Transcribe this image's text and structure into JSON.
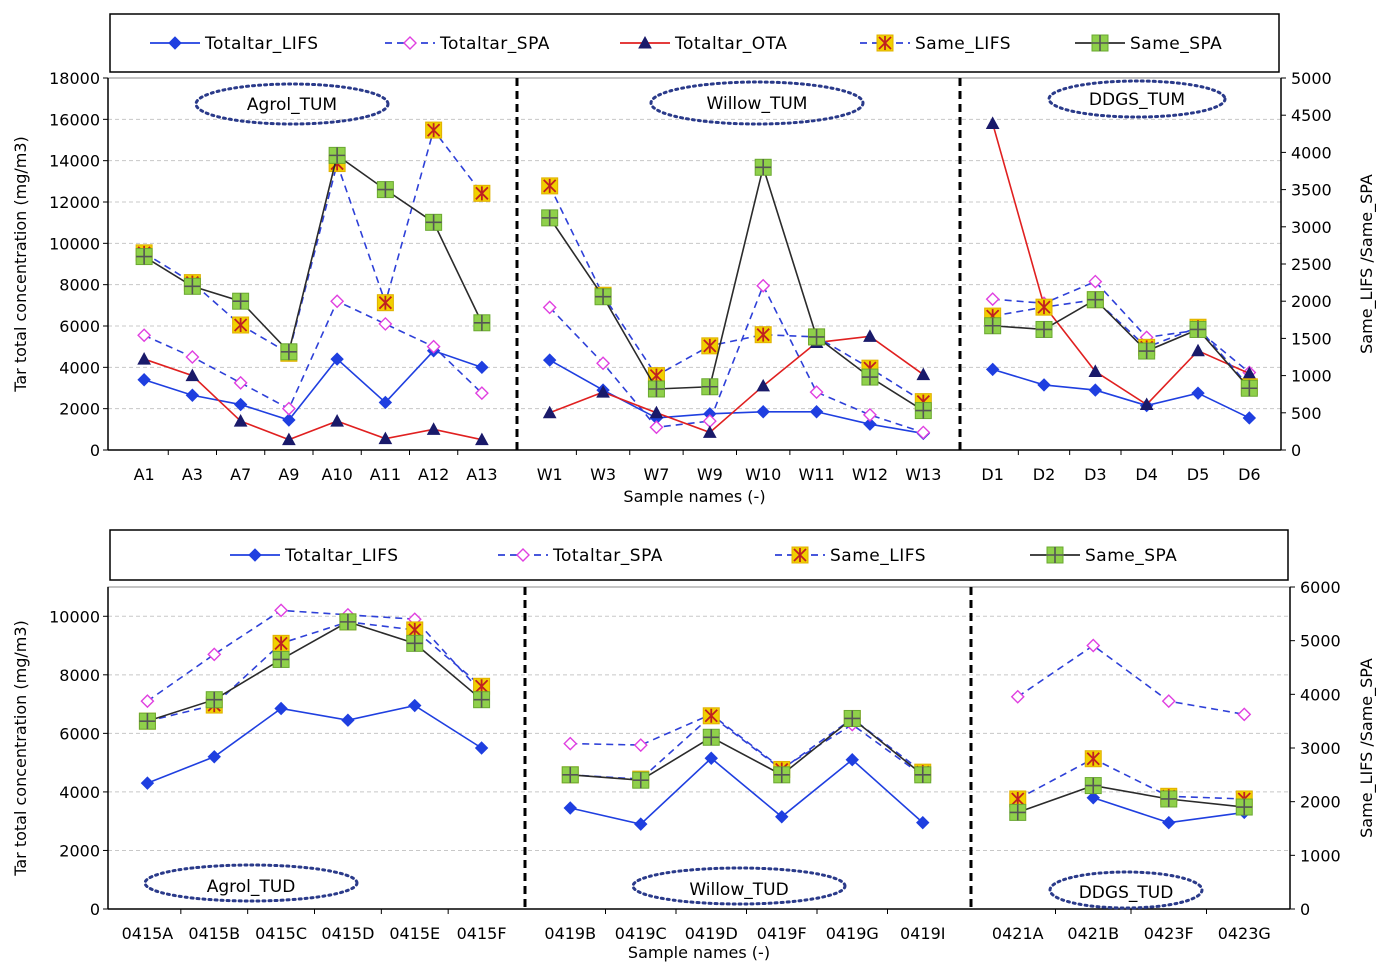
{
  "chart_data": [
    {
      "type": "line",
      "xlabel": "Sample names (-)",
      "ylabel": "Tar total concentration (mg/m3)",
      "y2label": "Same_LIFS  /Same_SPA",
      "ylim": [
        0,
        18000
      ],
      "yticks": [
        0,
        2000,
        4000,
        6000,
        8000,
        10000,
        12000,
        14000,
        16000,
        18000
      ],
      "y2lim": [
        0,
        5000
      ],
      "y2ticks": [
        0,
        500,
        1000,
        1500,
        2000,
        2500,
        3000,
        3500,
        4000,
        4500,
        5000
      ],
      "grid": true,
      "legend_position": "top",
      "categories": [
        "A1",
        "A3",
        "A7",
        "A9",
        "A10",
        "A11",
        "A12",
        "A13",
        "W1",
        "W3",
        "W7",
        "W9",
        "W10",
        "W11",
        "W12",
        "W13",
        "D1",
        "D2",
        "D3",
        "D4",
        "D5",
        "D6"
      ],
      "groups": [
        {
          "label": "Agrol_TUM",
          "categories": [
            "A1",
            "A3",
            "A7",
            "A9",
            "A10",
            "A11",
            "A12",
            "A13"
          ]
        },
        {
          "label": "Willow_TUM",
          "categories": [
            "W1",
            "W3",
            "W7",
            "W9",
            "W10",
            "W11",
            "W12",
            "W13"
          ]
        },
        {
          "label": "DDGS_TUM",
          "categories": [
            "D1",
            "D2",
            "D3",
            "D4",
            "D5",
            "D6"
          ]
        }
      ],
      "series": [
        {
          "name": "Totaltar_LIFS",
          "axis": "left",
          "color": "#1f3fe0",
          "dash": false,
          "marker": "diamond",
          "values": [
            3400,
            2650,
            2200,
            1450,
            4400,
            2300,
            4800,
            4000,
            4350,
            2900,
            1550,
            1750,
            1850,
            1850,
            1250,
            800,
            3900,
            3150,
            2900,
            2150,
            2750,
            1550
          ]
        },
        {
          "name": "Totaltar_SPA",
          "axis": "left",
          "color": "#2e40d8",
          "dash": true,
          "marker": "diamond-open",
          "values": [
            5550,
            4500,
            3250,
            2000,
            7200,
            6100,
            5000,
            2750,
            6900,
            4200,
            1100,
            1400,
            7950,
            2800,
            1700,
            850,
            7300,
            7100,
            8150,
            5450,
            5800,
            3750
          ]
        },
        {
          "name": "Totaltar_OTA",
          "axis": "left",
          "color": "#e02020",
          "dash": false,
          "marker": "triangle",
          "values": [
            4400,
            3600,
            1400,
            500,
            1400,
            550,
            1000,
            500,
            1800,
            2800,
            1800,
            850,
            3100,
            5200,
            5500,
            3650,
            15800,
            7000,
            3800,
            2200,
            4800,
            3700
          ]
        },
        {
          "name": "Same_LIFS",
          "axis": "right",
          "color": "#2e40d8",
          "dash": true,
          "marker": "star",
          "values": [
            2650,
            2250,
            1680,
            1300,
            3850,
            1980,
            4300,
            3450,
            3550,
            2080,
            1000,
            1400,
            1550,
            1520,
            1100,
            650,
            1800,
            1920,
            2020,
            1380,
            1650,
            850
          ]
        },
        {
          "name": "Same_SPA",
          "axis": "right",
          "color": "#2b2b2b",
          "dash": false,
          "marker": "square-plus",
          "values": [
            2600,
            2200,
            2000,
            1320,
            3960,
            3500,
            3060,
            1710,
            3120,
            2060,
            820,
            850,
            3800,
            1520,
            980,
            530,
            1670,
            1620,
            2020,
            1330,
            1620,
            830
          ]
        }
      ]
    },
    {
      "type": "line",
      "xlabel": "Sample names (-)",
      "ylabel": "Tar total concentration (mg/m3)",
      "y2label": "Same_LIFS  /Same_SPA",
      "ylim": [
        0,
        11000
      ],
      "yticks": [
        0,
        2000,
        4000,
        6000,
        8000,
        10000
      ],
      "y2lim": [
        0,
        6000
      ],
      "y2ticks": [
        0,
        1000,
        2000,
        3000,
        4000,
        5000,
        6000
      ],
      "grid": true,
      "legend_position": "top",
      "categories": [
        "0415A",
        "0415B",
        "0415C",
        "0415D",
        "0415E",
        "0415F",
        "0419B",
        "0419C",
        "0419D",
        "0419F",
        "0419G",
        "0419I",
        "0421A",
        "0421B",
        "0423F",
        "0423G"
      ],
      "groups": [
        {
          "label": "Agrol_TUD",
          "categories": [
            "0415A",
            "0415B",
            "0415C",
            "0415D",
            "0415E",
            "0415F"
          ]
        },
        {
          "label": "Willow_TUD",
          "categories": [
            "0419B",
            "0419C",
            "0419D",
            "0419F",
            "0419G",
            "0419I"
          ]
        },
        {
          "label": "DDGS_TUD",
          "categories": [
            "0421A",
            "0421B",
            "0423F",
            "0423G"
          ]
        }
      ],
      "series": [
        {
          "name": "Totaltar_LIFS",
          "axis": "left",
          "color": "#1f3fe0",
          "dash": false,
          "marker": "diamond",
          "values": [
            4300,
            5200,
            6850,
            6450,
            6950,
            5500,
            3450,
            2900,
            5150,
            3150,
            5100,
            2950,
            null,
            3800,
            2950,
            3300
          ]
        },
        {
          "name": "Totaltar_SPA",
          "axis": "left",
          "color": "#2e40d8",
          "dash": true,
          "marker": "diamond-open",
          "values": [
            7100,
            8700,
            10200,
            10050,
            9900,
            7400,
            5650,
            5600,
            6650,
            4800,
            6300,
            4550,
            7250,
            9000,
            7100,
            6650
          ]
        },
        {
          "name": "Same_LIFS",
          "axis": "right",
          "color": "#2e40d8",
          "dash": true,
          "marker": "star",
          "values": [
            3500,
            3800,
            4950,
            5350,
            5200,
            4150,
            2500,
            2420,
            3600,
            2600,
            3550,
            2550,
            2050,
            2800,
            2100,
            2050
          ]
        },
        {
          "name": "Same_SPA",
          "axis": "right",
          "color": "#2b2b2b",
          "dash": false,
          "marker": "square-plus",
          "values": [
            3500,
            3900,
            4650,
            5350,
            4950,
            3900,
            2500,
            2400,
            3200,
            2500,
            3550,
            2500,
            1800,
            2300,
            2050,
            1900
          ]
        }
      ]
    }
  ]
}
